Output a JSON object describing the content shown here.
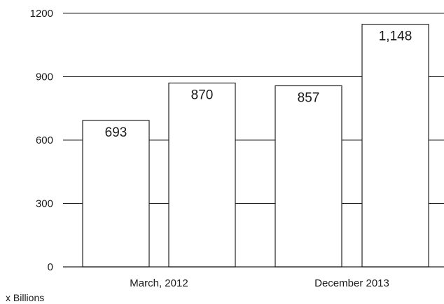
{
  "chart_data": {
    "type": "bar",
    "categories": [
      "March, 2012",
      "December 2013"
    ],
    "bars": [
      {
        "category_index": 0,
        "value": 693,
        "label": "693"
      },
      {
        "category_index": 0,
        "value": 870,
        "label": "870"
      },
      {
        "category_index": 1,
        "value": 857,
        "label": "857"
      },
      {
        "category_index": 1,
        "value": 1148,
        "label": "1,148"
      }
    ],
    "y_ticks": [
      0,
      300,
      600,
      900,
      1200
    ],
    "ylim": [
      0,
      1200
    ],
    "unit_label": "x Billions",
    "grid": true,
    "legend": "none"
  }
}
